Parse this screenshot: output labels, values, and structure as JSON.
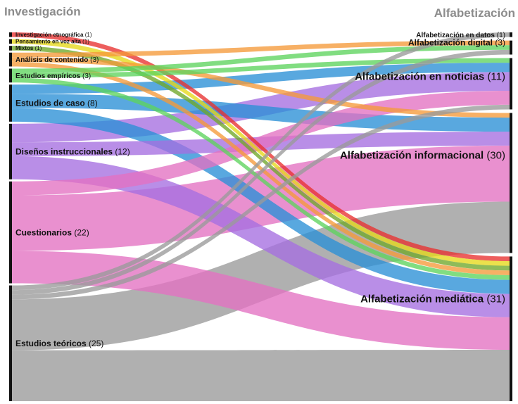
{
  "chart_data": {
    "type": "sankey",
    "left_title": "Investigación",
    "right_title": "Alfabetización",
    "left_nodes": [
      {
        "id": "L0",
        "name": "Investigación etnográfica",
        "count": 1,
        "color": "#e8312f"
      },
      {
        "id": "L1",
        "name": "Pensamiento en voz alta",
        "count": 1,
        "color": "#e6d81a"
      },
      {
        "id": "L2",
        "name": "Mixtos",
        "count": 1,
        "color": "#6fa82a"
      },
      {
        "id": "L3",
        "name": "Análisis de contenido",
        "count": 3,
        "color": "#f59a3a"
      },
      {
        "id": "L4",
        "name": "Estudios empíricos",
        "count": 3,
        "color": "#5ed45e"
      },
      {
        "id": "L5",
        "name": "Estudios de caso",
        "count": 8,
        "color": "#2a8fd6"
      },
      {
        "id": "L6",
        "name": "Diseños instruccionales",
        "count": 12,
        "color": "#a56ee0"
      },
      {
        "id": "L7",
        "name": "Cuestionarios",
        "count": 22,
        "color": "#e371c2"
      },
      {
        "id": "L8",
        "name": "Estudios teóricos",
        "count": 25,
        "color": "#9a9a9a"
      }
    ],
    "right_nodes": [
      {
        "id": "R0",
        "name": "Alfabetización en datos",
        "count": 1
      },
      {
        "id": "R1",
        "name": "Alfabetización digital",
        "count": 3
      },
      {
        "id": "R2",
        "name": "Alfabetización en noticias",
        "count": 11
      },
      {
        "id": "R3",
        "name": "Alfabetización informacional",
        "count": 30
      },
      {
        "id": "R4",
        "name": "Alfabetización mediática",
        "count": 31
      }
    ],
    "links": [
      {
        "source": "L0",
        "target": "R4",
        "value": 1
      },
      {
        "source": "L1",
        "target": "R4",
        "value": 1
      },
      {
        "source": "L2",
        "target": "R4",
        "value": 1
      },
      {
        "source": "L3",
        "target": "R1",
        "value": 1
      },
      {
        "source": "L3",
        "target": "R3",
        "value": 1
      },
      {
        "source": "L3",
        "target": "R4",
        "value": 1
      },
      {
        "source": "L4",
        "target": "R1",
        "value": 1
      },
      {
        "source": "L4",
        "target": "R2",
        "value": 1
      },
      {
        "source": "L4",
        "target": "R4",
        "value": 1
      },
      {
        "source": "L5",
        "target": "R2",
        "value": 2
      },
      {
        "source": "L5",
        "target": "R3",
        "value": 3
      },
      {
        "source": "L5",
        "target": "R4",
        "value": 3
      },
      {
        "source": "L6",
        "target": "R2",
        "value": 4
      },
      {
        "source": "L6",
        "target": "R3",
        "value": 3
      },
      {
        "source": "L6",
        "target": "R4",
        "value": 5
      },
      {
        "source": "L7",
        "target": "R2",
        "value": 3
      },
      {
        "source": "L7",
        "target": "R3",
        "value": 12
      },
      {
        "source": "L7",
        "target": "R4",
        "value": 7
      },
      {
        "source": "L8",
        "target": "R0",
        "value": 1
      },
      {
        "source": "L8",
        "target": "R1",
        "value": 1
      },
      {
        "source": "L8",
        "target": "R2",
        "value": 1
      },
      {
        "source": "L8",
        "target": "R3",
        "value": 11
      },
      {
        "source": "L8",
        "target": "R4",
        "value": 11
      }
    ]
  }
}
